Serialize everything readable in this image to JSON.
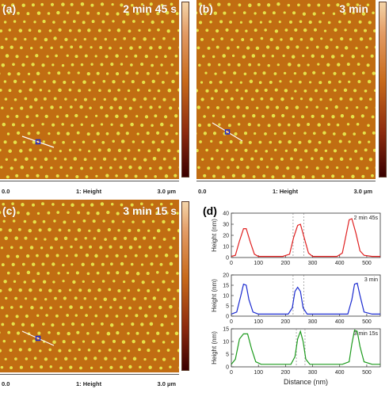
{
  "panels": [
    {
      "label": "(a)",
      "time": "2 min 45 s",
      "scale": {
        "left": "0.0",
        "center": "1: Height",
        "right": "3.0 µm"
      }
    },
    {
      "label": "(b)",
      "time": "3 min",
      "scale": {
        "left": "0.0",
        "center": "1: Height",
        "right": "3.0 µm"
      }
    },
    {
      "label": "(c)",
      "time": "3 min 15 s",
      "scale": {
        "left": "0.0",
        "center": "1: Height",
        "right": "3.0 µm"
      }
    }
  ],
  "colors": {
    "substrate": "#c16d12",
    "dot": "#e5e34a",
    "profile_red": "#e02020",
    "profile_blue": "#1a2ad0",
    "profile_green": "#1c9a1c"
  },
  "chart_data": {
    "label": "(d)",
    "type": "line",
    "xlabel": "Distance (nm)",
    "ylabel": "Height (nm)",
    "xlim": [
      0,
      550
    ],
    "xticks": [
      0,
      100,
      200,
      300,
      400,
      500
    ],
    "grid": false,
    "series": [
      {
        "name": "2 min 45s",
        "color": "#e02020",
        "ylim": [
          0,
          40
        ],
        "yticks": [
          0,
          10,
          20,
          30,
          40
        ],
        "x": [
          0,
          15,
          30,
          45,
          55,
          70,
          85,
          100,
          130,
          160,
          190,
          215,
          230,
          245,
          255,
          270,
          285,
          300,
          330,
          360,
          390,
          410,
          420,
          435,
          445,
          460,
          475,
          490,
          520,
          550
        ],
        "y": [
          1,
          2,
          15,
          26,
          26,
          14,
          3,
          1,
          1,
          1,
          1,
          3,
          18,
          29,
          30,
          17,
          4,
          1,
          1,
          1,
          1,
          4,
          16,
          34,
          35,
          22,
          6,
          2,
          1,
          1
        ],
        "markers": [
          228,
          268
        ]
      },
      {
        "name": "3 min",
        "color": "#1a2ad0",
        "ylim": [
          0,
          20
        ],
        "yticks": [
          0,
          5,
          10,
          15,
          20
        ],
        "x": [
          0,
          20,
          35,
          45,
          55,
          65,
          80,
          100,
          140,
          180,
          210,
          225,
          235,
          245,
          255,
          265,
          280,
          320,
          360,
          400,
          430,
          445,
          455,
          465,
          475,
          490,
          520,
          550
        ],
        "y": [
          1,
          2,
          10,
          15.5,
          15,
          8,
          2,
          1,
          1,
          1,
          1,
          4,
          12,
          14,
          12,
          4,
          1,
          1,
          1,
          1,
          1,
          8,
          15.5,
          16,
          10,
          2,
          1,
          1
        ],
        "markers": [
          228,
          268
        ]
      },
      {
        "name": "3 min 15s",
        "color": "#1c9a1c",
        "ylim": [
          0,
          15
        ],
        "yticks": [
          0,
          5,
          10,
          15
        ],
        "x": [
          0,
          15,
          30,
          45,
          60,
          75,
          90,
          110,
          150,
          190,
          220,
          235,
          245,
          255,
          265,
          275,
          290,
          330,
          370,
          410,
          435,
          445,
          455,
          465,
          475,
          490,
          520,
          550
        ],
        "y": [
          1,
          3,
          11,
          13,
          13,
          7,
          2,
          1,
          1,
          1,
          1,
          4,
          11,
          14,
          10,
          3,
          1,
          1,
          1,
          1,
          2,
          9,
          14.5,
          14,
          8,
          2,
          1,
          1
        ],
        "markers": [
          240,
          272
        ]
      }
    ]
  }
}
